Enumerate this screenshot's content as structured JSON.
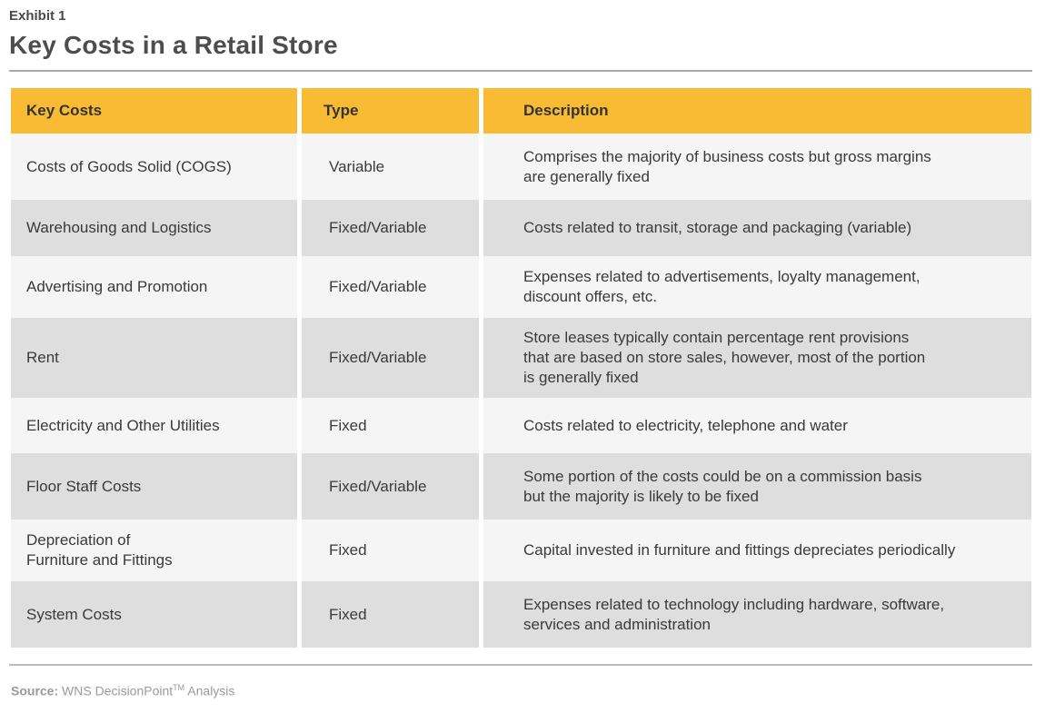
{
  "exhibit": "Exhibit 1",
  "title": "Key Costs in a Retail Store",
  "table": {
    "headers": [
      "Key Costs",
      "Type",
      "Description"
    ],
    "rows": [
      {
        "cost": "Costs of Goods Solid (COGS)",
        "type": "Variable",
        "description": [
          "Comprises the majority of business costs but gross margins",
          "are generally fixed"
        ]
      },
      {
        "cost": "Warehousing and Logistics",
        "type": "Fixed/Variable",
        "description": [
          "Costs related to transit, storage and packaging (variable)"
        ]
      },
      {
        "cost": "Advertising and Promotion",
        "type": "Fixed/Variable",
        "description": [
          "Expenses related to advertisements, loyalty management,",
          "discount offers, etc."
        ]
      },
      {
        "cost": "Rent",
        "type": "Fixed/Variable",
        "description": [
          "Store leases typically contain percentage rent provisions",
          "that are based on store sales, however, most of the portion",
          "is generally fixed"
        ]
      },
      {
        "cost": "Electricity and Other Utilities",
        "type": "Fixed",
        "description": [
          "Costs related to electricity, telephone and water"
        ]
      },
      {
        "cost": "Floor Staff Costs",
        "type": "Fixed/Variable",
        "description": [
          "Some portion of the costs could be on a commission basis",
          "but the majority is likely to be fixed"
        ]
      },
      {
        "cost": "Depreciation of Furniture and Fittings",
        "cost_lines": [
          "Depreciation of",
          "Furniture and Fittings"
        ],
        "type": "Fixed",
        "description": [
          "Capital invested in furniture and fittings depreciates periodically"
        ]
      },
      {
        "cost": "System Costs",
        "type": "Fixed",
        "description": [
          "Expenses related to technology including hardware, software,",
          "services and administration"
        ]
      }
    ]
  },
  "source": {
    "label": "Source:",
    "text": "WNS DecisionPoint",
    "trademark": "TM",
    "suffix": " Analysis"
  },
  "colors": {
    "header_bg": "#f8bb33",
    "row_light": "#f5f5f5",
    "row_dark": "#dedede"
  }
}
